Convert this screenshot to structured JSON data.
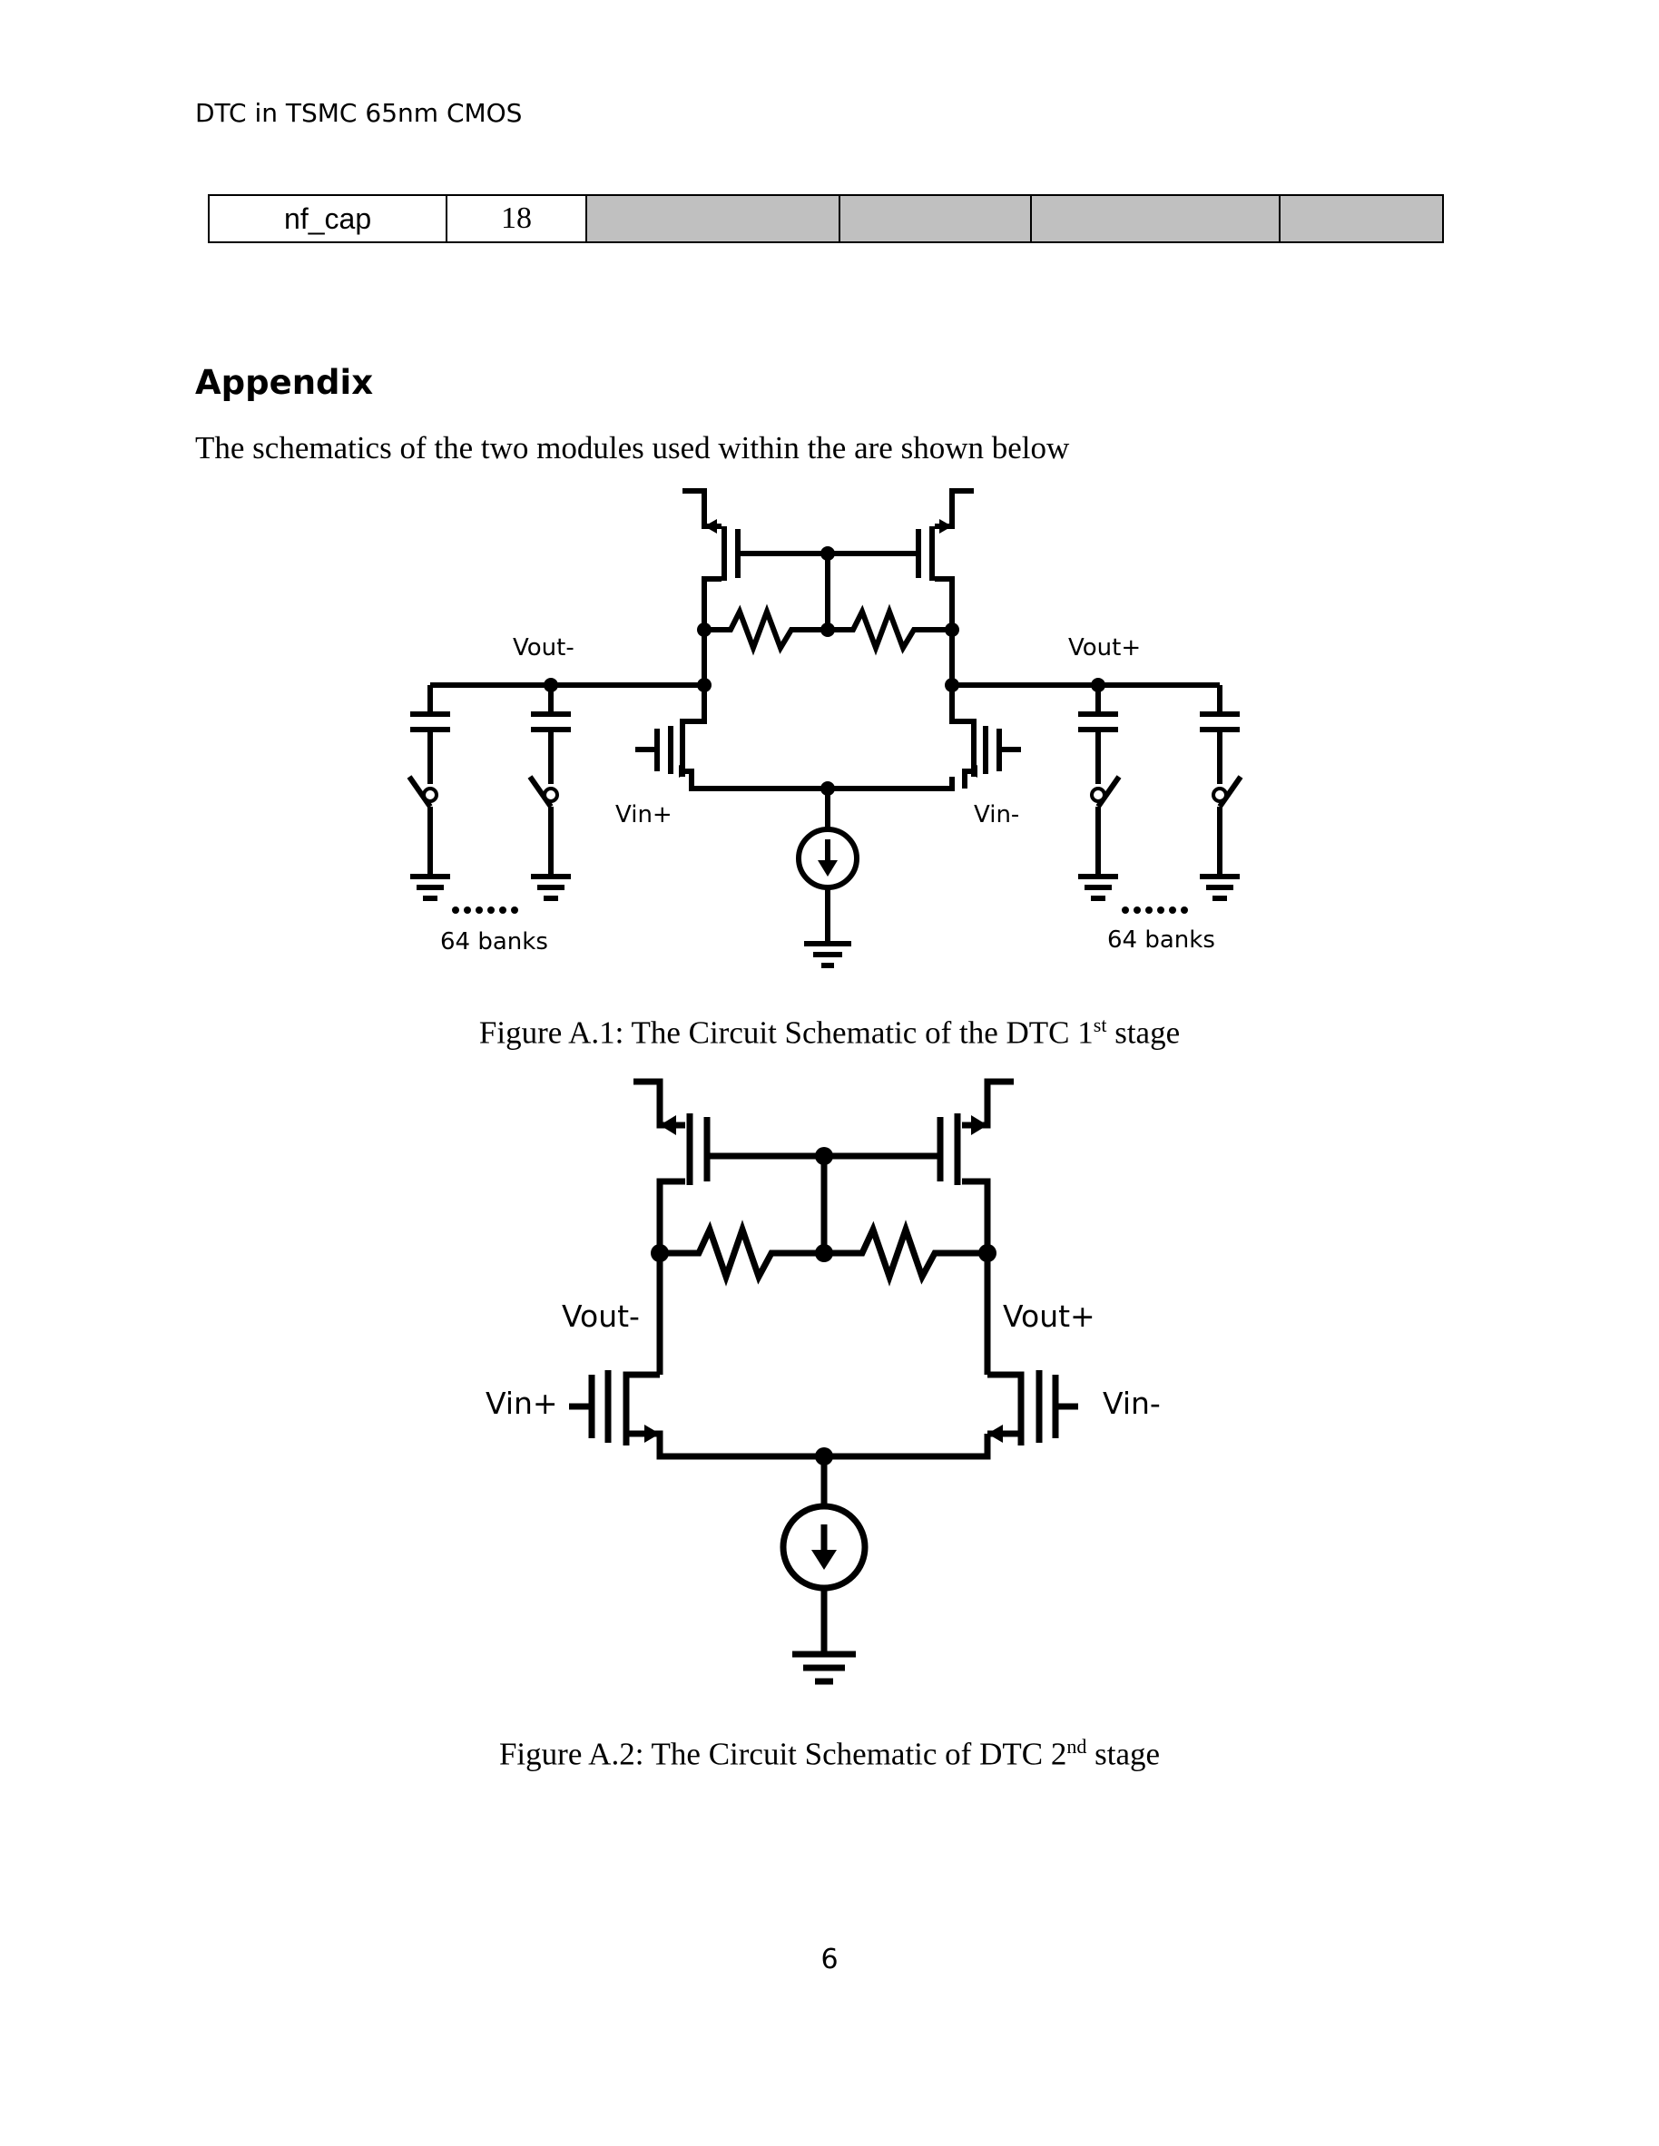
{
  "header": {
    "title": "DTC in TSMC 65nm CMOS"
  },
  "table": {
    "row": {
      "name": "nf_cap",
      "value": "18"
    }
  },
  "appendix": {
    "heading": "Appendix",
    "intro": "The schematics of the two modules used within the are shown below"
  },
  "figure1": {
    "labels": {
      "vout_minus": "Vout-",
      "vout_plus": "Vout+",
      "vin_plus": "Vin+",
      "vin_minus": "Vin-",
      "banks_left": "64 banks",
      "banks_right": "64 banks"
    },
    "caption": {
      "prefix": "Figure A.1: The Circuit Schematic of the DTC 1",
      "sup": "st",
      "suffix": " stage"
    }
  },
  "figure2": {
    "labels": {
      "vout_minus": "Vout-",
      "vout_plus": "Vout+",
      "vin_plus": "Vin+",
      "vin_minus": "Vin-"
    },
    "caption": {
      "prefix": "Figure A.2: The Circuit Schematic of DTC 2",
      "sup": "nd",
      "suffix": " stage"
    }
  },
  "footer": {
    "page_number": "6"
  }
}
